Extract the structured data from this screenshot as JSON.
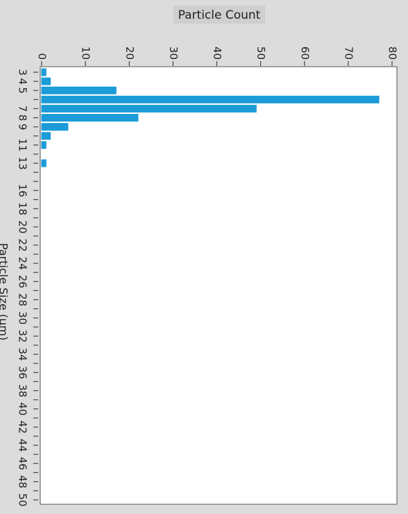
{
  "chart_data": {
    "type": "bar",
    "orientation": "horizontal",
    "title": "Particle Count",
    "y_label": "Particle Size (μm)",
    "categories": [
      "3",
      "4",
      "5",
      null,
      "7",
      "8",
      "9",
      null,
      "11",
      null,
      "13",
      null,
      null,
      "16",
      null,
      "18",
      null,
      "20",
      null,
      "22",
      null,
      "24",
      null,
      "26",
      null,
      "28",
      null,
      "30",
      null,
      "32",
      null,
      "34",
      null,
      "36",
      null,
      "38",
      null,
      "40",
      null,
      "42",
      null,
      "44",
      null,
      "46",
      null,
      "48",
      null,
      "50"
    ],
    "values": [
      1,
      2,
      17,
      77,
      49,
      22,
      6,
      2,
      1,
      0,
      1,
      0,
      0,
      0,
      0,
      0,
      0,
      0,
      0,
      0,
      0,
      0,
      0,
      0,
      0,
      0,
      0,
      0,
      0,
      0,
      0,
      0,
      0,
      0,
      0,
      0,
      0,
      0,
      0,
      0,
      0,
      0,
      0,
      0,
      0,
      0,
      0,
      0
    ],
    "color": "#1b9bd7",
    "xlim": [
      0,
      80
    ],
    "xticks": [
      0,
      10,
      20,
      30,
      40,
      50,
      60,
      70,
      80
    ]
  }
}
